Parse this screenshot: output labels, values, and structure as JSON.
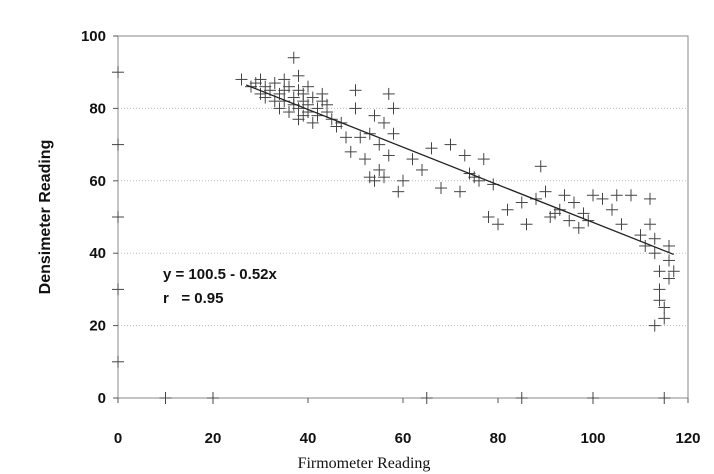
{
  "chart_data": {
    "type": "scatter",
    "title": "",
    "xlabel": "Firmometer Reading",
    "ylabel": "Densimeter Reading",
    "xlim": [
      0,
      120
    ],
    "ylim": [
      0,
      100
    ],
    "xticks": [
      "0",
      "20",
      "40",
      "60",
      "80",
      "100",
      "120"
    ],
    "yticks": [
      "0",
      "20",
      "40",
      "60",
      "80",
      "100"
    ],
    "grid": "horizontal dotted",
    "legend": "none",
    "annotations": [
      "y = 100.5 - 0.52x",
      "r   = 0.95"
    ],
    "regression": {
      "intercept": 100.5,
      "slope": -0.52,
      "x_range": [
        27,
        117
      ]
    },
    "x": [
      0,
      0,
      0,
      0,
      0,
      10,
      20,
      65,
      85,
      100,
      115,
      26,
      28,
      29,
      30,
      30,
      31,
      31,
      32,
      33,
      33,
      34,
      34,
      35,
      35,
      35,
      36,
      36,
      37,
      37,
      37,
      38,
      38,
      38,
      38,
      39,
      39,
      39,
      40,
      40,
      40,
      41,
      41,
      42,
      42,
      43,
      43,
      44,
      44,
      45,
      46,
      47,
      48,
      49,
      50,
      50,
      51,
      52,
      53,
      53,
      54,
      54,
      55,
      55,
      56,
      56,
      57,
      57,
      58,
      58,
      59,
      60,
      62,
      64,
      66,
      68,
      70,
      72,
      73,
      74,
      75,
      76,
      77,
      78,
      79,
      80,
      82,
      85,
      86,
      88,
      89,
      90,
      91,
      92,
      93,
      94,
      95,
      96,
      97,
      98,
      99,
      100,
      102,
      104,
      105,
      106,
      108,
      110,
      111,
      112,
      112,
      113,
      113,
      114,
      114,
      115,
      115,
      116,
      116,
      116,
      117,
      113,
      114
    ],
    "y": [
      90,
      70,
      50,
      30,
      10,
      0,
      0,
      0,
      0,
      0,
      0,
      88,
      86,
      87,
      84,
      88,
      83,
      86,
      85,
      82,
      87,
      80,
      84,
      85,
      88,
      82,
      79,
      86,
      83,
      94,
      81,
      85,
      89,
      80,
      77,
      84,
      82,
      78,
      86,
      81,
      79,
      83,
      76,
      80,
      78,
      84,
      82,
      79,
      81,
      77,
      75,
      76,
      72,
      68,
      80,
      85,
      72,
      66,
      73,
      61,
      78,
      60,
      70,
      63,
      76,
      61,
      67,
      84,
      80,
      73,
      57,
      60,
      66,
      63,
      69,
      58,
      70,
      57,
      67,
      62,
      61,
      60,
      66,
      50,
      59,
      48,
      52,
      54,
      48,
      55,
      64,
      57,
      50,
      51,
      52,
      56,
      49,
      54,
      47,
      51,
      49,
      56,
      55,
      52,
      56,
      48,
      56,
      45,
      42,
      55,
      48,
      40,
      44,
      35,
      30,
      25,
      22,
      38,
      42,
      33,
      35,
      20,
      27
    ]
  }
}
